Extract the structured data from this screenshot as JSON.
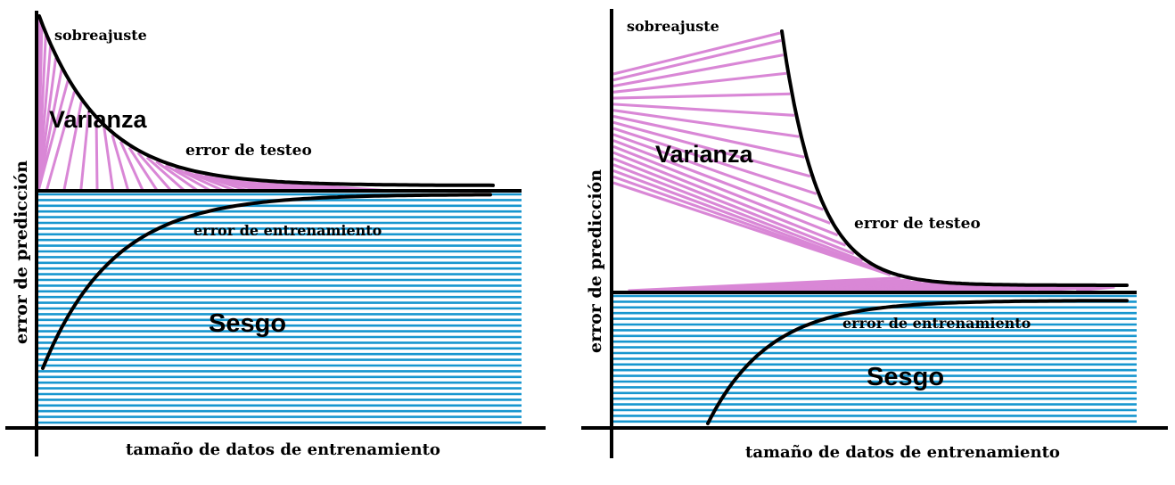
{
  "colors": {
    "variance_hatch": "#d987d6",
    "bias_stripe": "#1796cf",
    "curve": "#000000",
    "axis": "#000000",
    "background": "#ffffff"
  },
  "left_panel": {
    "y_axis_label": "error de predicción",
    "x_axis_label": "tamaño de datos de entrenamiento",
    "overfit_label": "sobreajuste",
    "variance_label": "Varianza",
    "bias_label": "Sesgo",
    "test_error_label": "error de testeo",
    "train_error_label": "error de entrenamiento"
  },
  "right_panel": {
    "y_axis_label": "error de predicción",
    "x_axis_label": "tamaño de datos de entrenamiento",
    "overfit_label": "sobreajuste",
    "variance_label": "Varianza",
    "bias_label": "Sesgo",
    "test_error_label": "error de testeo",
    "train_error_label": "error de entrenamiento"
  }
}
